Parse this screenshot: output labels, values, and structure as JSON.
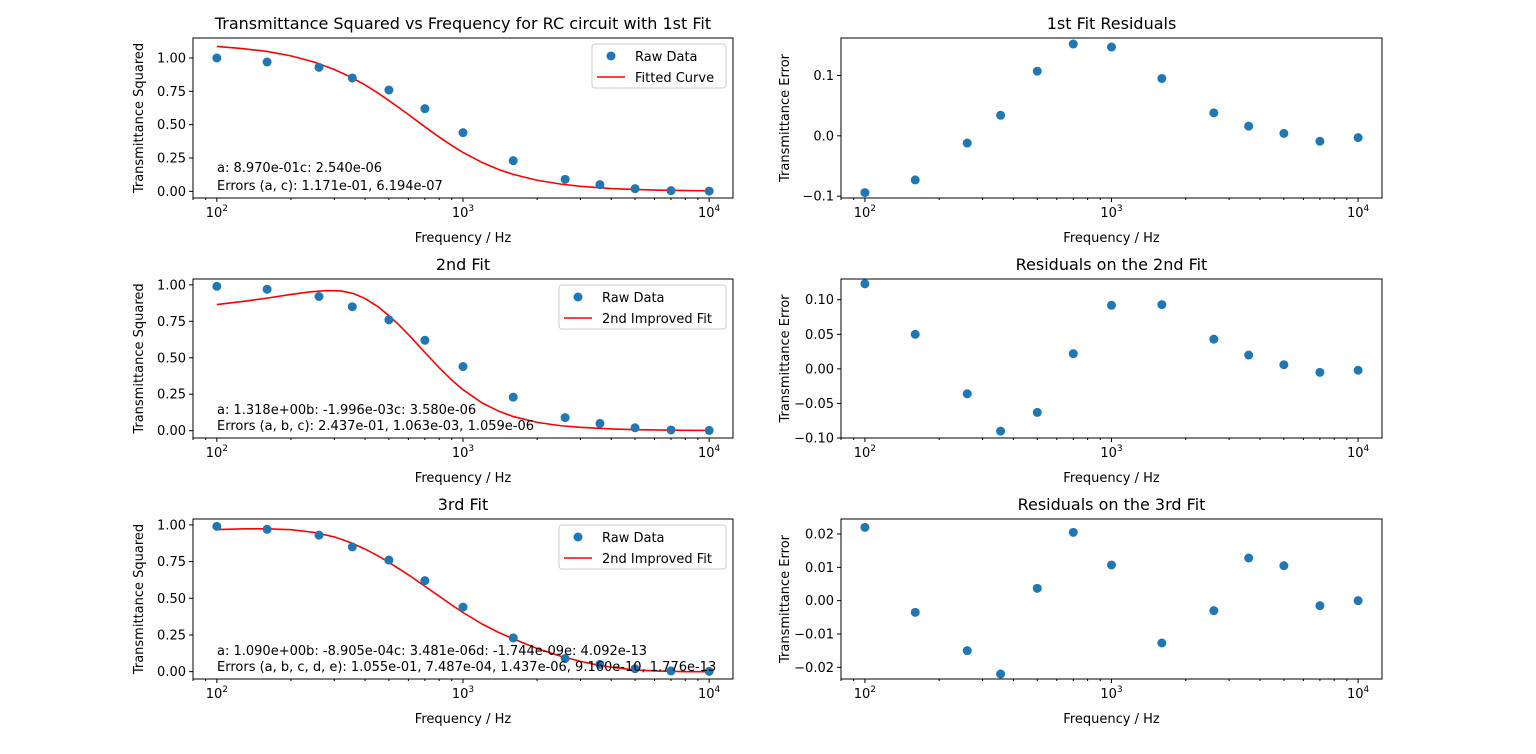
{
  "colors": {
    "points": "#1f77b4",
    "fit": "#ff0000"
  },
  "chart_data": [
    {
      "type": "scatter",
      "title": "Transmittance Squared vs Frequency for RC circuit with 1st Fit",
      "xlabel": "Frequency / Hz",
      "ylabel": "Transmittance Squared",
      "xscale": "log",
      "xlim": [
        80,
        12500
      ],
      "ylim": [
        -0.05,
        1.15
      ],
      "xticks": [
        {
          "v": 100,
          "base": "10",
          "exp": "2"
        },
        {
          "v": 1000,
          "base": "10",
          "exp": "3"
        },
        {
          "v": 10000,
          "base": "10",
          "exp": "4"
        }
      ],
      "yticks": [
        "0.00",
        "0.25",
        "0.50",
        "0.75",
        "1.00"
      ],
      "legend_position": "top-right",
      "series": [
        {
          "name": "Raw Data",
          "kind": "scatter",
          "x": [
            100,
            160,
            260,
            355,
            500,
            700,
            1000,
            1600,
            2600,
            3600,
            5000,
            7000,
            10000
          ],
          "y": [
            1.0,
            0.97,
            0.93,
            0.85,
            0.76,
            0.62,
            0.44,
            0.23,
            0.09,
            0.05,
            0.02,
            0.005,
            0.002
          ]
        },
        {
          "name": "Fitted Curve",
          "kind": "line",
          "x": [
            100,
            125,
            160,
            200,
            250,
            300,
            350,
            400,
            450,
            500,
            550,
            600,
            650,
            700,
            800,
            900,
            1000,
            1200,
            1400,
            1600,
            2000,
            2500,
            3000,
            4000,
            5000,
            6000,
            8000,
            10000
          ],
          "y": [
            1.087,
            1.072,
            1.049,
            1.016,
            0.968,
            0.914,
            0.857,
            0.798,
            0.739,
            0.681,
            0.627,
            0.576,
            0.528,
            0.484,
            0.407,
            0.344,
            0.292,
            0.215,
            0.163,
            0.127,
            0.083,
            0.054,
            0.038,
            0.021,
            0.014,
            0.0096,
            0.0054,
            0.0035
          ]
        }
      ],
      "annotations": [
        "a: 8.970e-01c: 2.540e-06",
        "Errors (a, c): 1.171e-01, 6.194e-07"
      ]
    },
    {
      "type": "scatter",
      "title": "1st Fit Residuals",
      "xlabel": "Frequency / Hz",
      "ylabel": "Transmittance Error",
      "xscale": "log",
      "xlim": [
        80,
        12500
      ],
      "ylim": [
        -0.103,
        0.162
      ],
      "xticks": [
        {
          "v": 100,
          "base": "10",
          "exp": "2"
        },
        {
          "v": 1000,
          "base": "10",
          "exp": "3"
        },
        {
          "v": 10000,
          "base": "10",
          "exp": "4"
        }
      ],
      "yticks": [
        "−0.1",
        "0.0",
        "0.1"
      ],
      "series": [
        {
          "name": "",
          "kind": "scatter",
          "x": [
            100,
            160,
            260,
            355,
            500,
            700,
            1000,
            1600,
            2600,
            3600,
            5000,
            7000,
            10000
          ],
          "y": [
            -0.094,
            -0.073,
            -0.012,
            0.034,
            0.107,
            0.152,
            0.147,
            0.095,
            0.038,
            0.016,
            0.004,
            -0.009,
            -0.003
          ]
        }
      ]
    },
    {
      "type": "scatter",
      "title": "2nd Fit",
      "xlabel": "Frequency / Hz",
      "ylabel": "Transmittance Squared",
      "xscale": "log",
      "xlim": [
        80,
        12500
      ],
      "ylim": [
        -0.05,
        1.04
      ],
      "xticks": [
        {
          "v": 100,
          "base": "10",
          "exp": "2"
        },
        {
          "v": 1000,
          "base": "10",
          "exp": "3"
        },
        {
          "v": 10000,
          "base": "10",
          "exp": "4"
        }
      ],
      "yticks": [
        "0.00",
        "0.25",
        "0.50",
        "0.75",
        "1.00"
      ],
      "legend_position": "top-right",
      "series": [
        {
          "name": "Raw Data",
          "kind": "scatter",
          "x": [
            100,
            160,
            260,
            355,
            500,
            700,
            1000,
            1600,
            2600,
            3600,
            5000,
            7000,
            10000
          ],
          "y": [
            0.99,
            0.97,
            0.92,
            0.85,
            0.76,
            0.62,
            0.44,
            0.23,
            0.09,
            0.05,
            0.02,
            0.005,
            0.002
          ]
        },
        {
          "name": "2nd Improved Fit",
          "kind": "line",
          "x": [
            100,
            130,
            160,
            200,
            240,
            280,
            320,
            360,
            400,
            450,
            500,
            550,
            600,
            650,
            700,
            800,
            900,
            1000,
            1200,
            1400,
            1600,
            2000,
            2500,
            3000,
            4000,
            5000,
            6000,
            8000,
            10000
          ],
          "y": [
            0.865,
            0.888,
            0.909,
            0.934,
            0.952,
            0.961,
            0.958,
            0.94,
            0.906,
            0.852,
            0.789,
            0.724,
            0.659,
            0.596,
            0.537,
            0.432,
            0.347,
            0.281,
            0.189,
            0.133,
            0.097,
            0.057,
            0.034,
            0.023,
            0.012,
            0.007,
            0.005,
            0.003,
            0.002
          ]
        }
      ],
      "annotations": [
        "a: 1.318e+00b: -1.996e-03c: 3.580e-06",
        "Errors (a, b, c): 2.437e-01, 1.063e-03, 1.059e-06"
      ]
    },
    {
      "type": "scatter",
      "title": "Residuals on the 2nd Fit",
      "xlabel": "Frequency / Hz",
      "ylabel": "Transmittance Error",
      "xscale": "log",
      "xlim": [
        80,
        12500
      ],
      "ylim": [
        -0.1,
        0.13
      ],
      "xticks": [
        {
          "v": 100,
          "base": "10",
          "exp": "2"
        },
        {
          "v": 1000,
          "base": "10",
          "exp": "3"
        },
        {
          "v": 10000,
          "base": "10",
          "exp": "4"
        }
      ],
      "yticks": [
        "−0.10",
        "−0.05",
        "0.00",
        "0.05",
        "0.10"
      ],
      "series": [
        {
          "name": "",
          "kind": "scatter",
          "x": [
            100,
            160,
            260,
            355,
            500,
            700,
            1000,
            1600,
            2600,
            3600,
            5000,
            7000,
            10000
          ],
          "y": [
            0.123,
            0.05,
            -0.036,
            -0.09,
            -0.063,
            0.022,
            0.092,
            0.093,
            0.043,
            0.02,
            0.006,
            -0.005,
            -0.002
          ]
        }
      ]
    },
    {
      "type": "scatter",
      "title": "3rd Fit",
      "xlabel": "Frequency / Hz",
      "ylabel": "Transmittance Squared",
      "xscale": "log",
      "xlim": [
        80,
        12500
      ],
      "ylim": [
        -0.05,
        1.04
      ],
      "xticks": [
        {
          "v": 100,
          "base": "10",
          "exp": "2"
        },
        {
          "v": 1000,
          "base": "10",
          "exp": "3"
        },
        {
          "v": 10000,
          "base": "10",
          "exp": "4"
        }
      ],
      "yticks": [
        "0.00",
        "0.25",
        "0.50",
        "0.75",
        "1.00"
      ],
      "legend_position": "top-right",
      "series": [
        {
          "name": "Raw Data",
          "kind": "scatter",
          "x": [
            100,
            160,
            260,
            355,
            500,
            700,
            1000,
            1600,
            2600,
            3600,
            5000,
            7000,
            10000
          ],
          "y": [
            0.99,
            0.97,
            0.93,
            0.85,
            0.76,
            0.62,
            0.44,
            0.23,
            0.09,
            0.05,
            0.02,
            0.005,
            0.002
          ]
        },
        {
          "name": "2nd Improved Fit",
          "kind": "line",
          "x": [
            100,
            130,
            160,
            200,
            250,
            300,
            350,
            400,
            450,
            500,
            600,
            700,
            800,
            900,
            1000,
            1200,
            1400,
            1600,
            2000,
            2500,
            3000,
            3500,
            4000,
            5000,
            6000,
            8000,
            10000
          ],
          "y": [
            0.968,
            0.973,
            0.973,
            0.967,
            0.948,
            0.918,
            0.879,
            0.835,
            0.79,
            0.745,
            0.66,
            0.582,
            0.514,
            0.454,
            0.403,
            0.323,
            0.266,
            0.223,
            0.158,
            0.105,
            0.07,
            0.046,
            0.03,
            0.012,
            0.005,
            0.0,
            0.0
          ]
        }
      ],
      "annotations": [
        "a: 1.090e+00b: -8.905e-04c: 3.481e-06d: -1.744e-09e: 4.092e-13",
        "Errors (a, b, c, d, e): 1.055e-01, 7.487e-04, 1.437e-06, 9.160e-10, 1.776e-13"
      ]
    },
    {
      "type": "scatter",
      "title": "Residuals on the 3rd Fit",
      "xlabel": "Frequency / Hz",
      "ylabel": "Transmittance Error",
      "xscale": "log",
      "xlim": [
        80,
        12500
      ],
      "ylim": [
        -0.0235,
        0.0245
      ],
      "xticks": [
        {
          "v": 100,
          "base": "10",
          "exp": "2"
        },
        {
          "v": 1000,
          "base": "10",
          "exp": "3"
        },
        {
          "v": 10000,
          "base": "10",
          "exp": "4"
        }
      ],
      "yticks": [
        "−0.02",
        "−0.01",
        "0.00",
        "0.01",
        "0.02"
      ],
      "series": [
        {
          "name": "",
          "kind": "scatter",
          "x": [
            100,
            160,
            260,
            355,
            500,
            700,
            1000,
            1600,
            2600,
            3600,
            5000,
            7000,
            10000
          ],
          "y": [
            0.022,
            -0.0035,
            -0.015,
            -0.022,
            0.0037,
            0.0205,
            0.0107,
            -0.0127,
            -0.003,
            0.0128,
            0.0105,
            -0.0015,
            0.0
          ]
        }
      ]
    }
  ]
}
